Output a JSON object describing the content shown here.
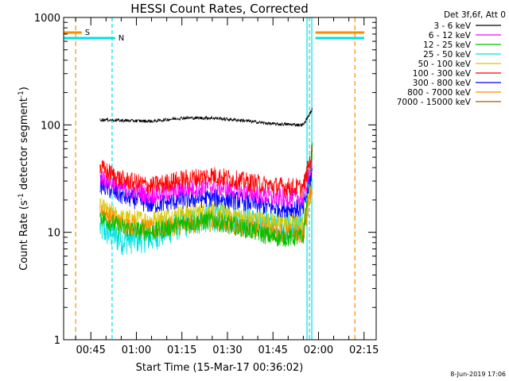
{
  "chart_data": {
    "type": "line",
    "title": "HESSI Count Rates, Corrected",
    "xlabel": "Start Time (15-Mar-17 00:36:02)",
    "ylabel_main": "Count Rate (s",
    "ylabel_sup1": "-1",
    "ylabel_mid": " detector segment",
    "ylabel_sup2": "-1",
    "ylabel_end": ")",
    "y_scale": "log",
    "ylim": [
      1,
      1000
    ],
    "xlim": [
      "00:36:02",
      "02:19:00"
    ],
    "y_ticks": [
      {
        "value": 1,
        "label": "1"
      },
      {
        "value": 10,
        "label": "10"
      },
      {
        "value": 100,
        "label": "100"
      },
      {
        "value": 1000,
        "label": "1000"
      }
    ],
    "x_ticks": [
      {
        "value": "00:45",
        "label": "00:45"
      },
      {
        "value": "01:00",
        "label": "01:00"
      },
      {
        "value": "01:15",
        "label": "01:15"
      },
      {
        "value": "01:30",
        "label": "01:30"
      },
      {
        "value": "01:45",
        "label": "01:45"
      },
      {
        "value": "02:00",
        "label": "02:00"
      },
      {
        "value": "02:15",
        "label": "02:15"
      }
    ],
    "legend_header": "Det 3f,6f, Att 0",
    "legend_placement": "right, outside plot",
    "series": [
      {
        "name": "3 - 6 keV",
        "color": "#000000",
        "points": [
          [
            "00:48",
            112
          ],
          [
            "00:55",
            110
          ],
          [
            "01:05",
            108
          ],
          [
            "01:15",
            116
          ],
          [
            "01:25",
            116
          ],
          [
            "01:35",
            110
          ],
          [
            "01:45",
            102
          ],
          [
            "01:55",
            100
          ],
          [
            "01:58",
            140
          ]
        ]
      },
      {
        "name": "6 - 12 keV",
        "color": "#ff00ff",
        "points": [
          [
            "00:48",
            33
          ],
          [
            "00:55",
            26
          ],
          [
            "01:05",
            22
          ],
          [
            "01:15",
            25
          ],
          [
            "01:25",
            27
          ],
          [
            "01:35",
            24
          ],
          [
            "01:45",
            21
          ],
          [
            "01:55",
            21
          ],
          [
            "01:58",
            48
          ]
        ]
      },
      {
        "name": "12 - 25 keV",
        "color": "#00c000",
        "points": [
          [
            "00:48",
            14
          ],
          [
            "00:55",
            11
          ],
          [
            "01:05",
            10
          ],
          [
            "01:15",
            12
          ],
          [
            "01:25",
            13
          ],
          [
            "01:35",
            11
          ],
          [
            "01:45",
            9
          ],
          [
            "01:55",
            9
          ],
          [
            "01:58",
            60
          ]
        ]
      },
      {
        "name": "25 - 50 keV",
        "color": "#00e0e0",
        "points": [
          [
            "00:48",
            11
          ],
          [
            "00:55",
            8.5
          ],
          [
            "01:05",
            9
          ],
          [
            "01:15",
            12
          ],
          [
            "01:25",
            14
          ],
          [
            "01:35",
            13
          ],
          [
            "01:45",
            11.5
          ],
          [
            "01:55",
            11
          ],
          [
            "01:58",
            36
          ]
        ]
      },
      {
        "name": "50 - 100 keV",
        "color": "#d8c800",
        "points": [
          [
            "00:48",
            17
          ],
          [
            "00:55",
            13.5
          ],
          [
            "01:05",
            13
          ],
          [
            "01:15",
            15
          ],
          [
            "01:25",
            16
          ],
          [
            "01:35",
            14
          ],
          [
            "01:45",
            12.5
          ],
          [
            "01:55",
            12
          ],
          [
            "01:58",
            32
          ]
        ]
      },
      {
        "name": "100 - 300 keV",
        "color": "#ff0000",
        "points": [
          [
            "00:48",
            40
          ],
          [
            "00:55",
            31
          ],
          [
            "01:05",
            27
          ],
          [
            "01:15",
            31
          ],
          [
            "01:25",
            34
          ],
          [
            "01:35",
            30
          ],
          [
            "01:45",
            27
          ],
          [
            "01:55",
            26
          ],
          [
            "01:58",
            58
          ]
        ]
      },
      {
        "name": "300 - 800 keV",
        "color": "#0000ff",
        "points": [
          [
            "00:48",
            28
          ],
          [
            "00:55",
            22
          ],
          [
            "01:05",
            18
          ],
          [
            "01:15",
            20
          ],
          [
            "01:25",
            21
          ],
          [
            "01:35",
            19.5
          ],
          [
            "01:45",
            17
          ],
          [
            "01:55",
            16.5
          ],
          [
            "01:58",
            38
          ]
        ]
      },
      {
        "name": "800 - 7000 keV",
        "color": "#ff8c00",
        "points": [
          [
            "00:48",
            16
          ],
          [
            "00:55",
            12
          ],
          [
            "01:05",
            10.5
          ],
          [
            "01:15",
            11.5
          ],
          [
            "01:25",
            12.5
          ],
          [
            "01:35",
            11
          ],
          [
            "01:45",
            10
          ],
          [
            "01:55",
            9.5
          ],
          [
            "01:58",
            28
          ]
        ]
      },
      {
        "name": "7000 - 15000 keV",
        "color": "#a06000",
        "points": []
      }
    ],
    "annotations": {
      "s_label": "S",
      "n_label": "N",
      "s_color": "#ff8c00",
      "n_color": "#00e0e0",
      "vertical_lines": [
        {
          "time": "00:40",
          "color": "#ff8c00"
        },
        {
          "time": "00:52",
          "color": "#00e0e0"
        },
        {
          "time": "01:57",
          "color": "#00e0e0"
        },
        {
          "time": "02:12",
          "color": "#ff8c00"
        }
      ]
    },
    "noise_level": 0.09
  },
  "footer": {
    "date_stamp": "8-Jun-2019 17:06"
  }
}
